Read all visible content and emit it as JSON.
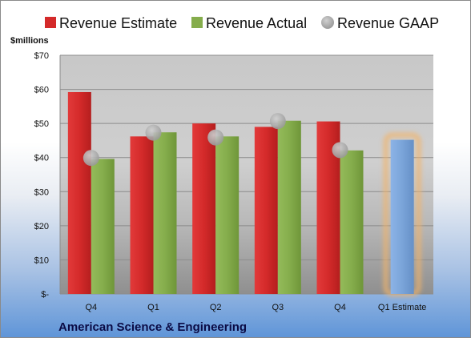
{
  "chart_data": {
    "type": "bar",
    "units_label": "$millions",
    "categories": [
      "Q4",
      "Q1",
      "Q2",
      "Q3",
      "Q4",
      "Q1 Estimate"
    ],
    "series": [
      {
        "name": "Revenue Estimate",
        "kind": "bar",
        "color": "#d42a2a",
        "values": [
          59.2,
          46.2,
          50.0,
          49.0,
          50.6,
          null
        ]
      },
      {
        "name": "Revenue Actual",
        "kind": "bar",
        "color": "#85ad4c",
        "values": [
          39.6,
          47.4,
          46.2,
          50.8,
          42.1,
          null
        ]
      },
      {
        "name": "Revenue GAAP",
        "kind": "marker",
        "color": "#a6a6a6",
        "values": [
          39.9,
          47.3,
          45.9,
          50.7,
          42.2,
          null
        ]
      },
      {
        "name": "",
        "kind": "bar",
        "color": "#7aa4d9",
        "highlight": "#f2b46a",
        "values": [
          null,
          null,
          null,
          null,
          null,
          45.2
        ]
      }
    ],
    "ylim": [
      0,
      70
    ],
    "y_ticks": [
      0,
      10,
      20,
      30,
      40,
      50,
      60,
      70
    ],
    "y_tick_labels": [
      "$-",
      "$10",
      "$20",
      "$30",
      "$40",
      "$50",
      "$60",
      "$70"
    ],
    "grid": true,
    "legend_position": "top",
    "footer": "American Science & Engineering"
  }
}
